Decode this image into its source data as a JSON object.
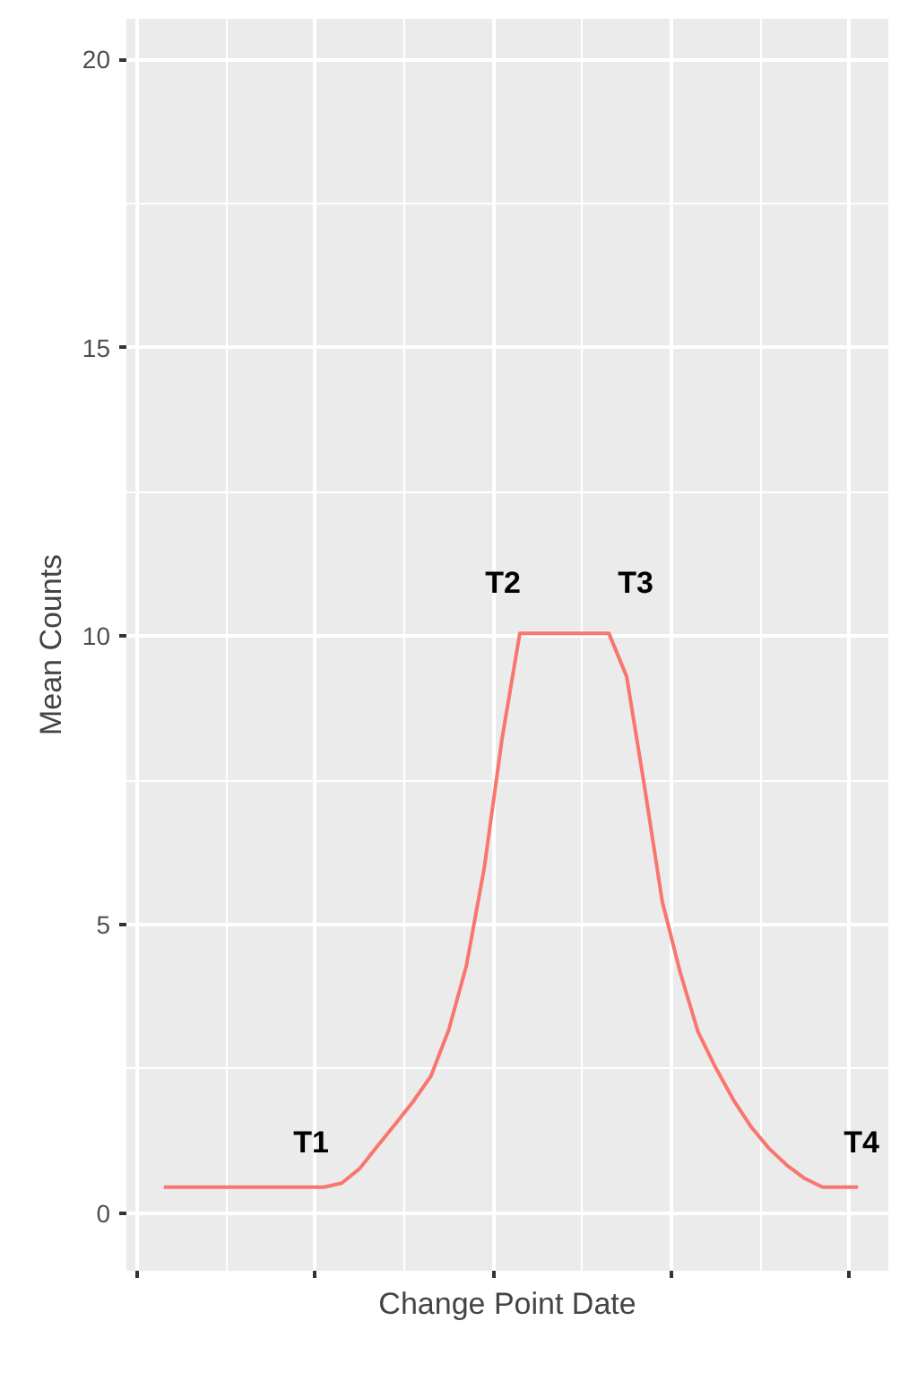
{
  "chart_data": {
    "type": "line",
    "xlabel": "Change Point Date",
    "ylabel": "Mean Counts",
    "categories": [
      null,
      null,
      null,
      null,
      null,
      null,
      null,
      null,
      null,
      null,
      null,
      null,
      null,
      null,
      null,
      null,
      null,
      null,
      null,
      null,
      null,
      null,
      null,
      null,
      null,
      null,
      null,
      null,
      null,
      null,
      null,
      null,
      null,
      null,
      null,
      null,
      null,
      null,
      null,
      null
    ],
    "series": [
      {
        "color": "#f8766d",
        "values": [
          0.45,
          0.45,
          0.45,
          0.45,
          0.45,
          0.45,
          0.45,
          0.45,
          0.45,
          0.45,
          0.52,
          0.77,
          1.16,
          1.54,
          1.93,
          2.37,
          3.17,
          4.29,
          5.98,
          8.22,
          10.05,
          10.05,
          10.05,
          10.05,
          10.05,
          10.05,
          9.3,
          7.4,
          5.4,
          4.18,
          3.15,
          2.52,
          1.96,
          1.49,
          1.12,
          0.83,
          0.6,
          0.45,
          0.45,
          0.45
        ]
      }
    ],
    "ylim": [
      -1.0,
      20.7
    ],
    "yticks": [
      0,
      5,
      10,
      15,
      20
    ],
    "tick_labels": "y",
    "grid": true,
    "marker": "none",
    "line_style": "solid",
    "annotations": [
      "T1",
      "T2",
      "T3",
      "T4"
    ]
  }
}
